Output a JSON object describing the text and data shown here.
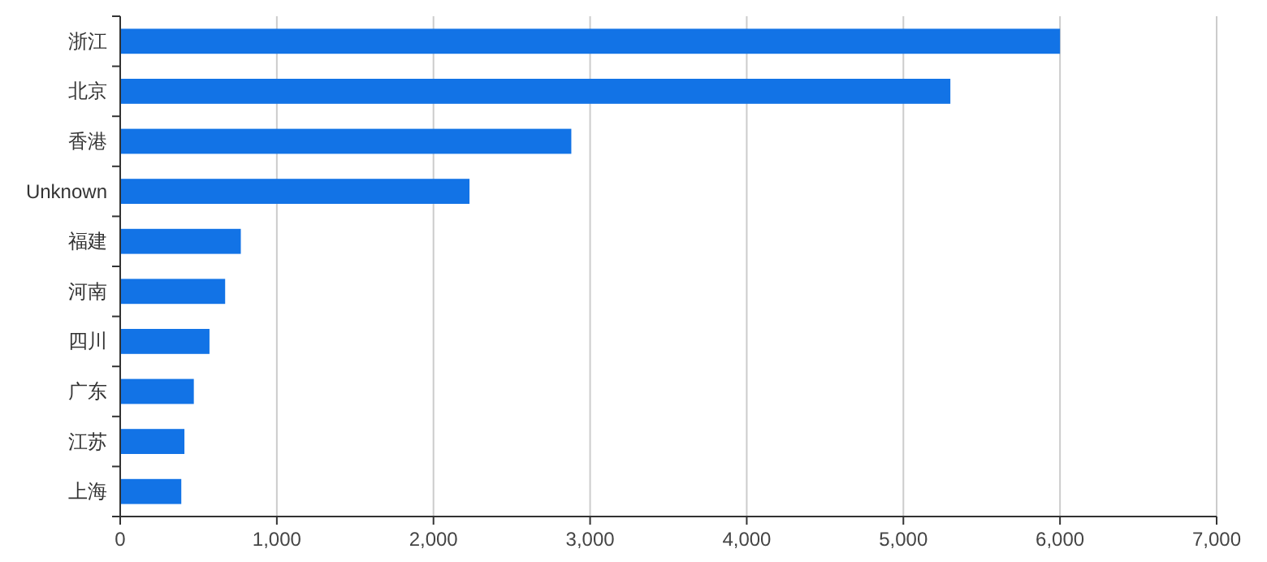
{
  "chart_data": {
    "type": "bar",
    "orientation": "horizontal",
    "categories": [
      "浙江",
      "北京",
      "香港",
      "Unknown",
      "福建",
      "河南",
      "四川",
      "广东",
      "江苏",
      "上海"
    ],
    "values": [
      6000,
      5300,
      2880,
      2230,
      770,
      670,
      570,
      470,
      410,
      390
    ],
    "color": "#1273e6",
    "xlim": [
      0,
      7000
    ],
    "xticks": [
      0,
      {
        "value": 1000,
        "label": "1,000"
      },
      {
        "value": 2000,
        "label": "2,000"
      },
      {
        "value": 3000,
        "label": "3,000"
      },
      {
        "value": 4000,
        "label": "4,000"
      },
      {
        "value": 5000,
        "label": "5,000"
      },
      {
        "value": 6000,
        "label": "6,000"
      },
      {
        "value": 7000,
        "label": "7,000"
      }
    ],
    "grid": "x"
  }
}
